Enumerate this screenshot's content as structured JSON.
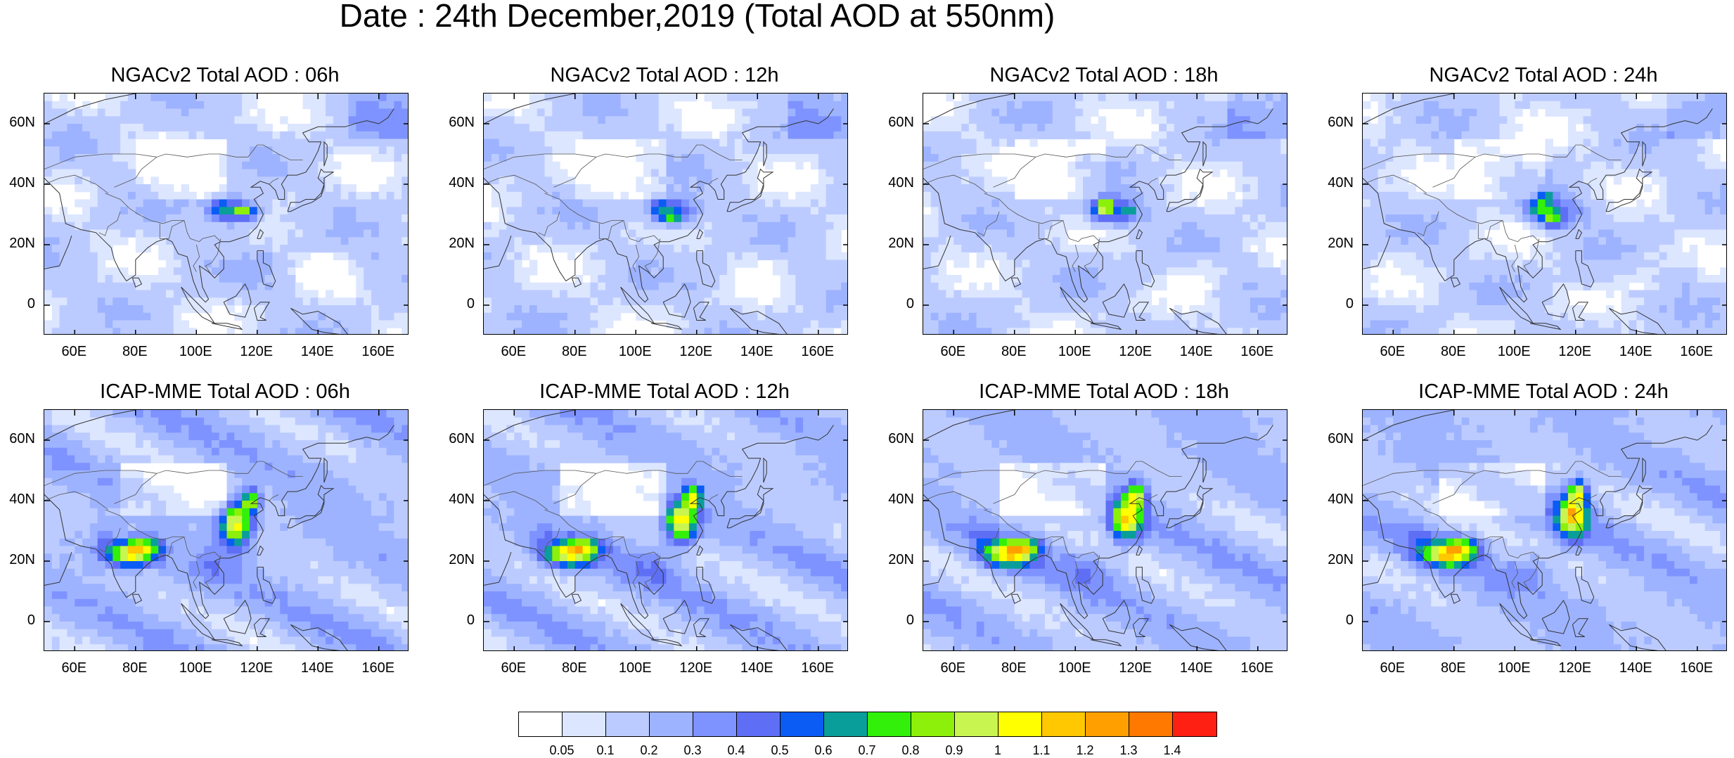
{
  "title": "Date : 24th December,2019 (Total AOD at 550nm)",
  "y_ticks": [
    "60N",
    "40N",
    "20N",
    "0"
  ],
  "x_ticks": [
    "60E",
    "80E",
    "100E",
    "120E",
    "140E",
    "160E"
  ],
  "panels": [
    {
      "title": "NGACv2 Total AOD : 06h",
      "model": "NGACv2",
      "hour": "06h"
    },
    {
      "title": "NGACv2 Total AOD : 12h",
      "model": "NGACv2",
      "hour": "12h"
    },
    {
      "title": "NGACv2 Total AOD : 18h",
      "model": "NGACv2",
      "hour": "18h"
    },
    {
      "title": "NGACv2 Total AOD : 24h",
      "model": "NGACv2",
      "hour": "24h"
    },
    {
      "title": "ICAP-MME Total AOD : 06h",
      "model": "ICAP-MME",
      "hour": "06h"
    },
    {
      "title": "ICAP-MME Total AOD : 12h",
      "model": "ICAP-MME",
      "hour": "12h"
    },
    {
      "title": "ICAP-MME Total AOD : 18h",
      "model": "ICAP-MME",
      "hour": "18h"
    },
    {
      "title": "ICAP-MME Total AOD : 24h",
      "model": "ICAP-MME",
      "hour": "24h"
    }
  ],
  "colorbar": {
    "colors": [
      "#ffffff",
      "#dce6ff",
      "#bccbff",
      "#9db3ff",
      "#7e93ff",
      "#5f6ff5",
      "#0a5cf5",
      "#0a9e9a",
      "#32f00a",
      "#8cf00a",
      "#c8f550",
      "#ffff00",
      "#ffc800",
      "#ffa000",
      "#ff7800",
      "#ff2014"
    ],
    "labels": [
      "0.05",
      "0.1",
      "0.2",
      "0.3",
      "0.4",
      "0.5",
      "0.6",
      "0.7",
      "0.8",
      "0.9",
      "1",
      "1.1",
      "1.2",
      "1.3",
      "1.4"
    ]
  }
}
